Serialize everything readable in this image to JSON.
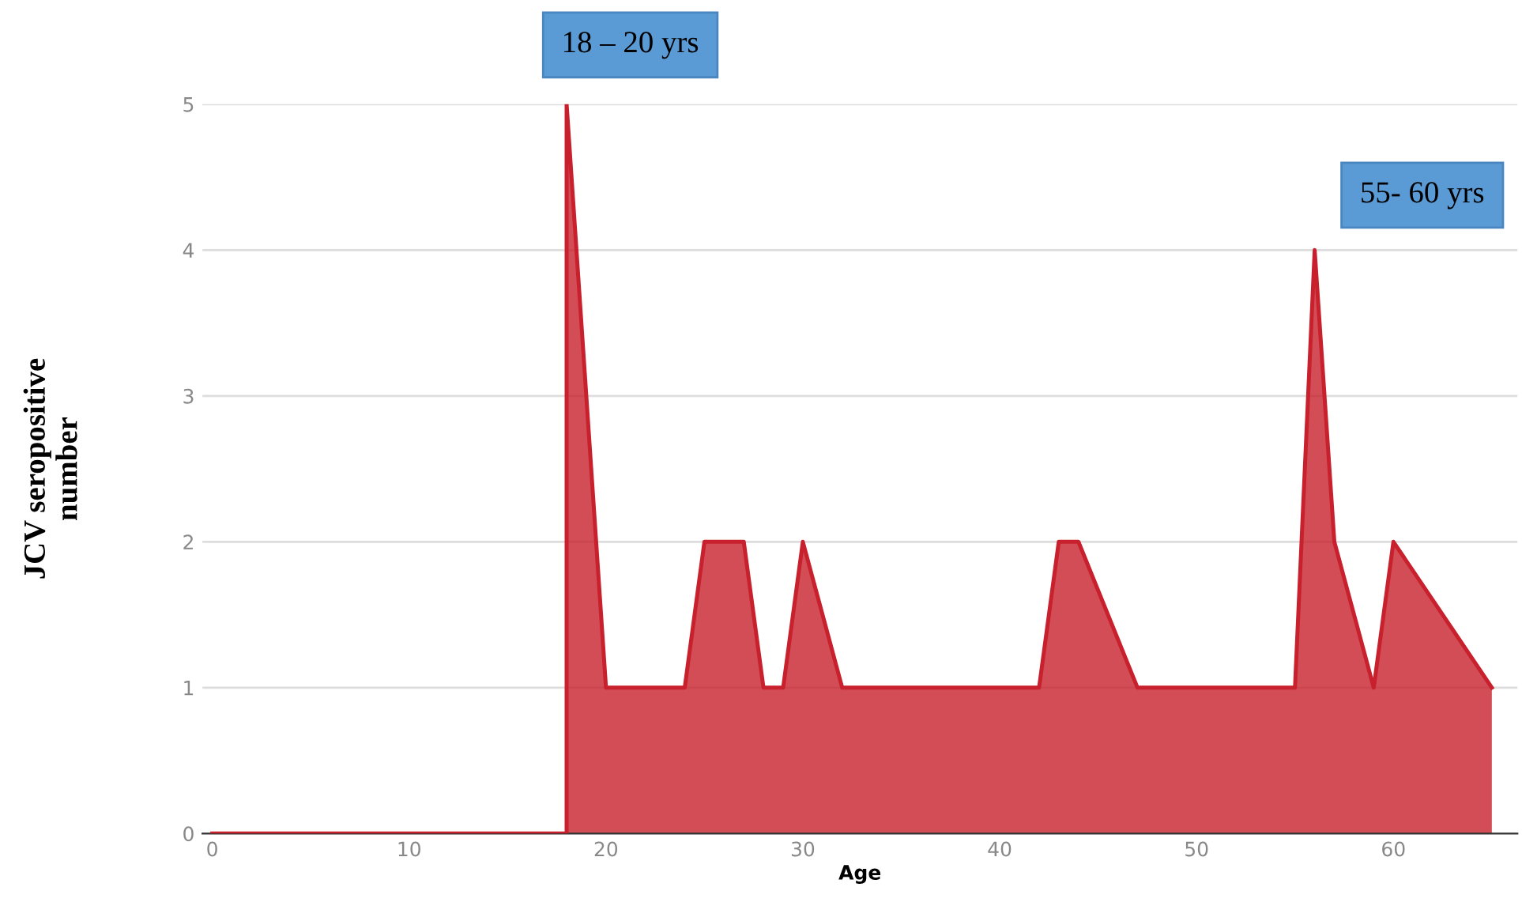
{
  "chart_data": {
    "type": "area",
    "xlabel": "Age",
    "ylabel": "JCV seropositive\nnumber",
    "x": [
      0,
      18,
      18,
      20,
      24,
      25,
      27,
      28,
      29,
      30,
      32,
      42,
      43,
      44,
      47,
      55,
      56,
      57,
      59,
      60,
      65
    ],
    "series": [
      {
        "color": "#c8202c",
        "values": [
          0,
          0,
          5,
          1,
          1,
          2,
          2,
          1,
          1,
          2,
          1,
          1,
          2,
          2,
          1,
          1,
          4,
          2,
          1,
          2,
          1
        ]
      }
    ],
    "xlim": [
      -0.5,
      66.3
    ],
    "xticks": [
      0,
      10,
      20,
      30,
      40,
      50,
      60
    ],
    "ylim": [
      0,
      5
    ],
    "yticks": [
      0,
      1,
      2,
      3,
      4,
      5
    ],
    "grid": "y",
    "annotations": [
      {
        "text": "18 – 20 yrs",
        "x": 18,
        "y": 5
      },
      {
        "text": "55- 60 yrs",
        "x": 56,
        "y": 4
      }
    ]
  }
}
